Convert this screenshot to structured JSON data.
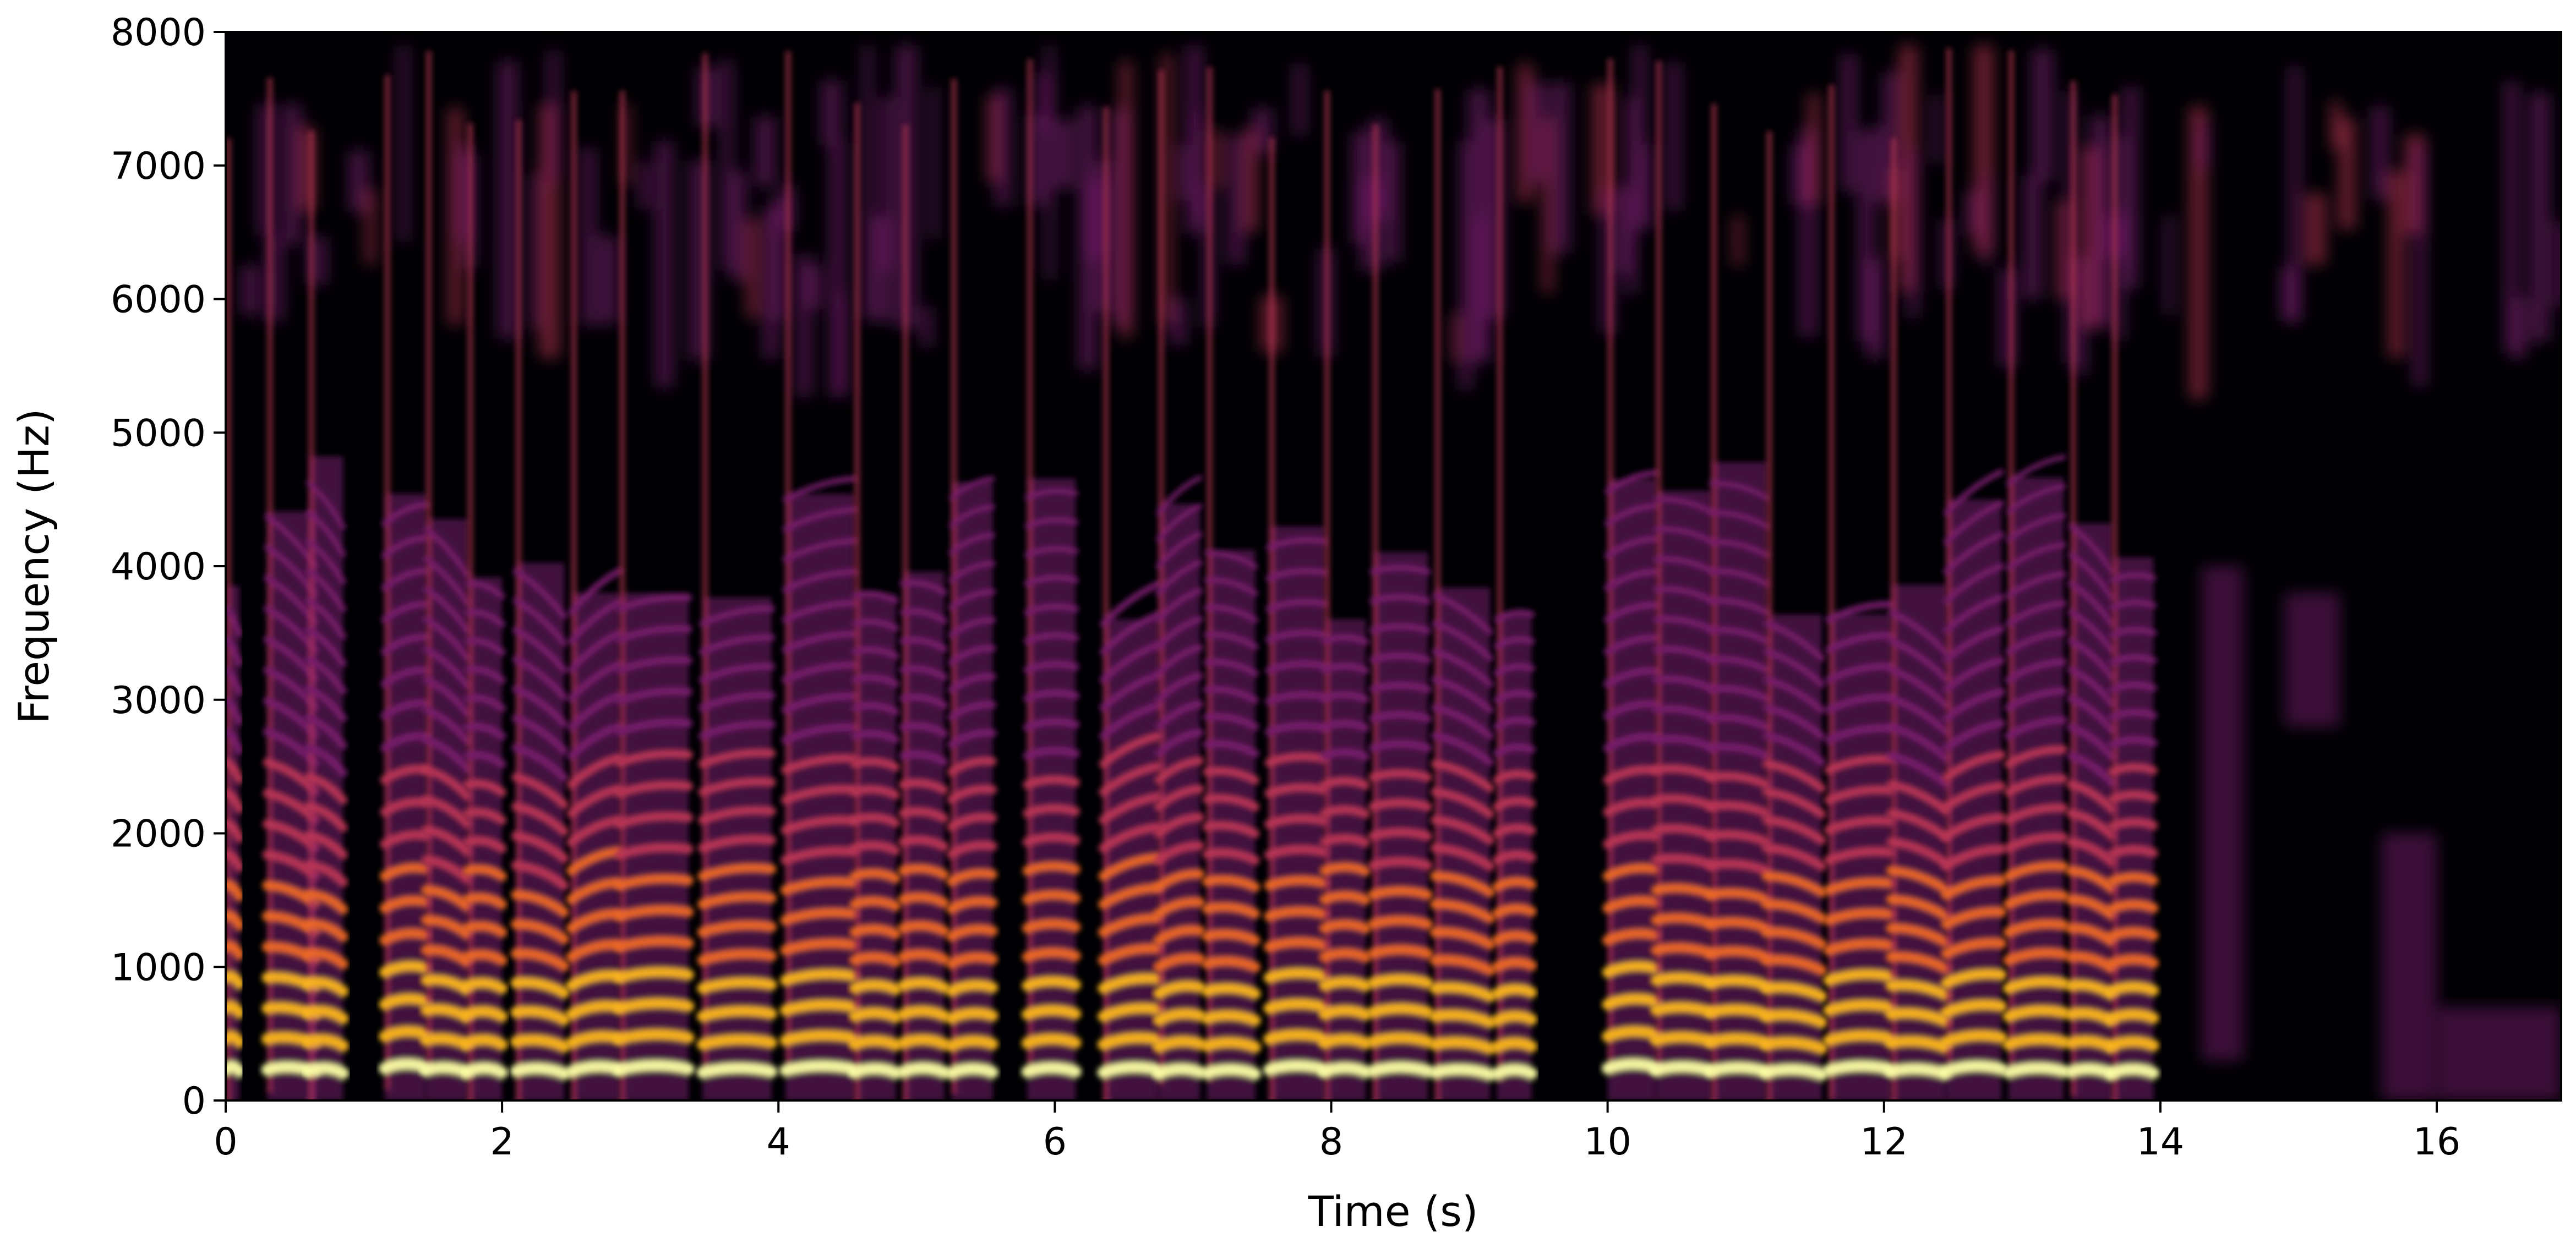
{
  "chart_data": {
    "type": "heatmap",
    "subtype": "spectrogram",
    "title": "",
    "xlabel": "Time (s)",
    "ylabel": "Frequency (Hz)",
    "xlim": [
      0,
      16.9
    ],
    "ylim": [
      0,
      8000
    ],
    "x_ticks": [
      0,
      2,
      4,
      6,
      8,
      10,
      12,
      14,
      16
    ],
    "y_ticks": [
      0,
      1000,
      2000,
      3000,
      4000,
      5000,
      6000,
      7000,
      8000
    ],
    "x_tick_labels": [
      "0",
      "2",
      "4",
      "6",
      "8",
      "10",
      "12",
      "14",
      "16"
    ],
    "y_tick_labels": [
      "0",
      "1000",
      "2000",
      "3000",
      "4000",
      "5000",
      "6000",
      "7000",
      "8000"
    ],
    "colormap": "inferno",
    "colormap_stops": [
      "#000004",
      "#320a5e",
      "#781c6d",
      "#bc3754",
      "#ed6925",
      "#fbb61a",
      "#fcffa4"
    ],
    "grid": false,
    "legend": "none",
    "voiced_segments": [
      {
        "start": 0.0,
        "end": 0.1,
        "f0": 230
      },
      {
        "start": 0.3,
        "end": 0.65,
        "f0": 230
      },
      {
        "start": 0.6,
        "end": 0.85,
        "f0": 220
      },
      {
        "start": 1.15,
        "end": 1.45,
        "f0": 240
      },
      {
        "start": 1.45,
        "end": 1.75,
        "f0": 225
      },
      {
        "start": 1.75,
        "end": 2.0,
        "f0": 215
      },
      {
        "start": 2.1,
        "end": 2.45,
        "f0": 220
      },
      {
        "start": 2.5,
        "end": 2.85,
        "f0": 215
      },
      {
        "start": 2.85,
        "end": 3.35,
        "f0": 230
      },
      {
        "start": 3.45,
        "end": 3.95,
        "f0": 210
      },
      {
        "start": 4.05,
        "end": 4.55,
        "f0": 225
      },
      {
        "start": 4.55,
        "end": 4.85,
        "f0": 210
      },
      {
        "start": 4.9,
        "end": 5.2,
        "f0": 215
      },
      {
        "start": 5.25,
        "end": 5.55,
        "f0": 205
      },
      {
        "start": 5.8,
        "end": 6.15,
        "f0": 215
      },
      {
        "start": 6.35,
        "end": 6.75,
        "f0": 210
      },
      {
        "start": 6.75,
        "end": 7.05,
        "f0": 200
      },
      {
        "start": 7.1,
        "end": 7.45,
        "f0": 205
      },
      {
        "start": 7.55,
        "end": 7.95,
        "f0": 230
      },
      {
        "start": 7.95,
        "end": 8.25,
        "f0": 215
      },
      {
        "start": 8.3,
        "end": 8.7,
        "f0": 220
      },
      {
        "start": 8.75,
        "end": 9.15,
        "f0": 210
      },
      {
        "start": 9.2,
        "end": 9.45,
        "f0": 200
      },
      {
        "start": 10.0,
        "end": 10.35,
        "f0": 240
      },
      {
        "start": 10.35,
        "end": 10.75,
        "f0": 225
      },
      {
        "start": 10.75,
        "end": 11.15,
        "f0": 220
      },
      {
        "start": 11.15,
        "end": 11.55,
        "f0": 210
      },
      {
        "start": 11.6,
        "end": 12.05,
        "f0": 225
      },
      {
        "start": 12.05,
        "end": 12.45,
        "f0": 215
      },
      {
        "start": 12.45,
        "end": 12.85,
        "f0": 220
      },
      {
        "start": 12.9,
        "end": 13.3,
        "f0": 210
      },
      {
        "start": 13.35,
        "end": 13.65,
        "f0": 215
      },
      {
        "start": 13.65,
        "end": 13.95,
        "f0": 205
      }
    ],
    "noise_segments": [
      {
        "start": 14.3,
        "end": 14.6,
        "fmin": 300,
        "fmax": 4000
      },
      {
        "start": 14.9,
        "end": 15.3,
        "fmin": 2800,
        "fmax": 3800
      },
      {
        "start": 15.6,
        "end": 16.0,
        "fmin": 0,
        "fmax": 2000
      },
      {
        "start": 16.0,
        "end": 16.9,
        "fmin": 0,
        "fmax": 700
      }
    ]
  }
}
